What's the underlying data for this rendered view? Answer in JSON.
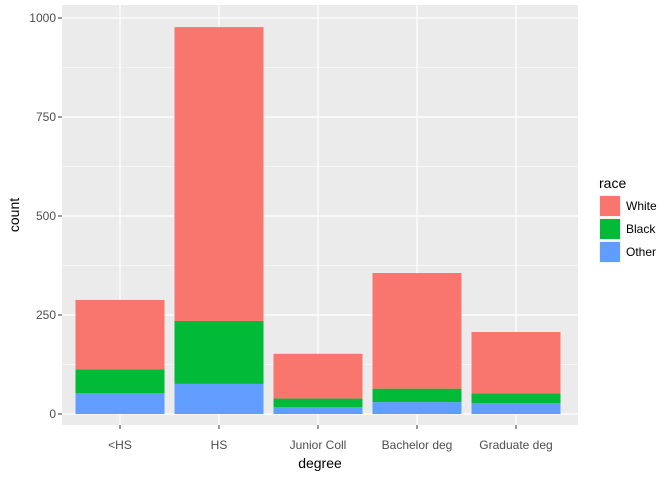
{
  "chart_data": {
    "type": "bar",
    "stacked": true,
    "categories": [
      "<HS",
      "HS",
      "Junior Coll",
      "Bachelor deg",
      "Graduate deg"
    ],
    "series": [
      {
        "name": "White",
        "color": "#F8766D",
        "values": [
          175,
          742,
          113,
          292,
          155
        ]
      },
      {
        "name": "Black",
        "color": "#00BA38",
        "values": [
          60,
          159,
          22,
          34,
          25
        ]
      },
      {
        "name": "Other",
        "color": "#619CFF",
        "values": [
          53,
          76,
          17,
          30,
          27
        ]
      }
    ],
    "xlabel": "degree",
    "ylabel": "count",
    "ylim": [
      0,
      1000
    ],
    "yticks": [
      0,
      250,
      500,
      750,
      1000
    ],
    "grid": true,
    "legend": {
      "title": "race",
      "placement": "right"
    },
    "panel_background": "#EBEBEB"
  }
}
